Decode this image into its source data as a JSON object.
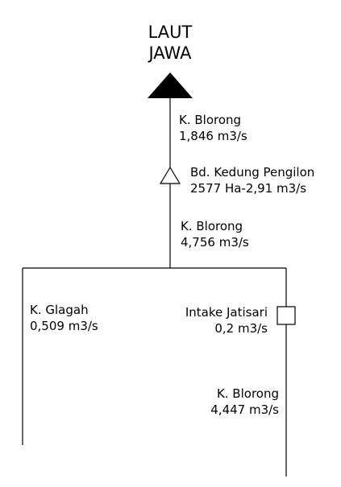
{
  "sea": {
    "line1": "LAUT",
    "line2": "JAWA"
  },
  "segments": [
    {
      "name": "K. Blorong",
      "flow": "1,846 m3/s"
    },
    {
      "name": "Bd. Kedung Pengilon",
      "flow": "2577 Ha-2,91 m3/s"
    },
    {
      "name": "K. Blorong",
      "flow": "4,756 m3/s"
    },
    {
      "name": "K. Glagah",
      "flow": "0,509 m3/s"
    },
    {
      "name": "Intake Jatisari",
      "flow": "0,2 m3/s"
    },
    {
      "name": "K. Blorong",
      "flow": "4,447 m3/s"
    }
  ],
  "colors": {
    "line": "#000000",
    "background": "#ffffff"
  }
}
